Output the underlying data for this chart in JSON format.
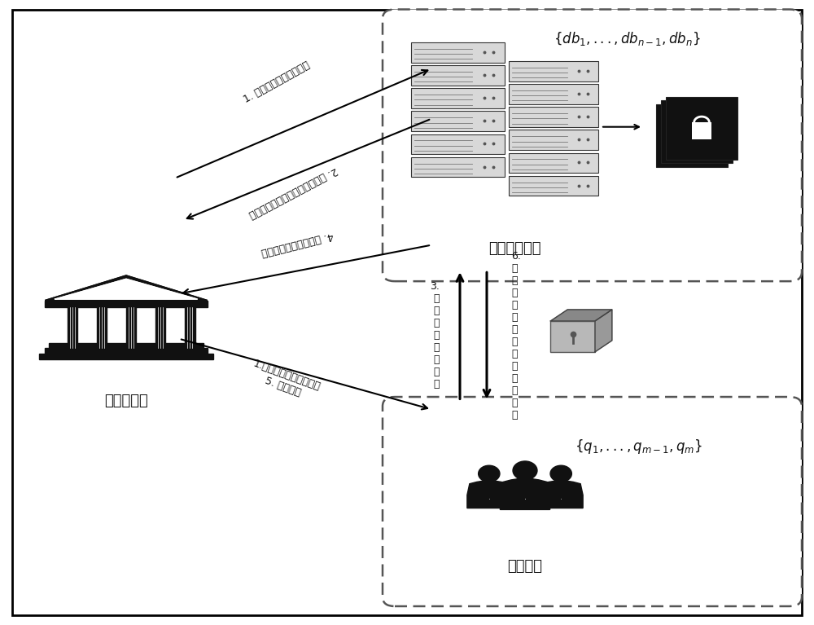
{
  "bg_color": "#ffffff",
  "border_color": "#000000",
  "dashed_box_color": "#666666",
  "db_owner_label": "数据库拥有者",
  "db_owner_formula": "$\\{db_1,...,db_{n-1},db_n\\}$",
  "query_user_label": "查询用户",
  "query_user_formula": "$\\{q_1,...,q_{m-1},q_m\\}$",
  "cert_issuer_label": "证书颁布者",
  "arrow1_label": "1. 设置公钥以及公开参数",
  "arrow2_label": "2. 设定基因数据访问属性以及标签",
  "arrow3_label": "3.\n基\n因\n序\n列\n安\n全\n比\n对",
  "arrow4_label": "4. 查询标签以及相关属性",
  "arrow5_label": "1.设置公钥以及公开参数\n5. 证书颁布",
  "arrow6_label": "6.\n证\n书\n匿\n名\n验\n证\n通\n过\n后\n获\n取\n数\n据"
}
